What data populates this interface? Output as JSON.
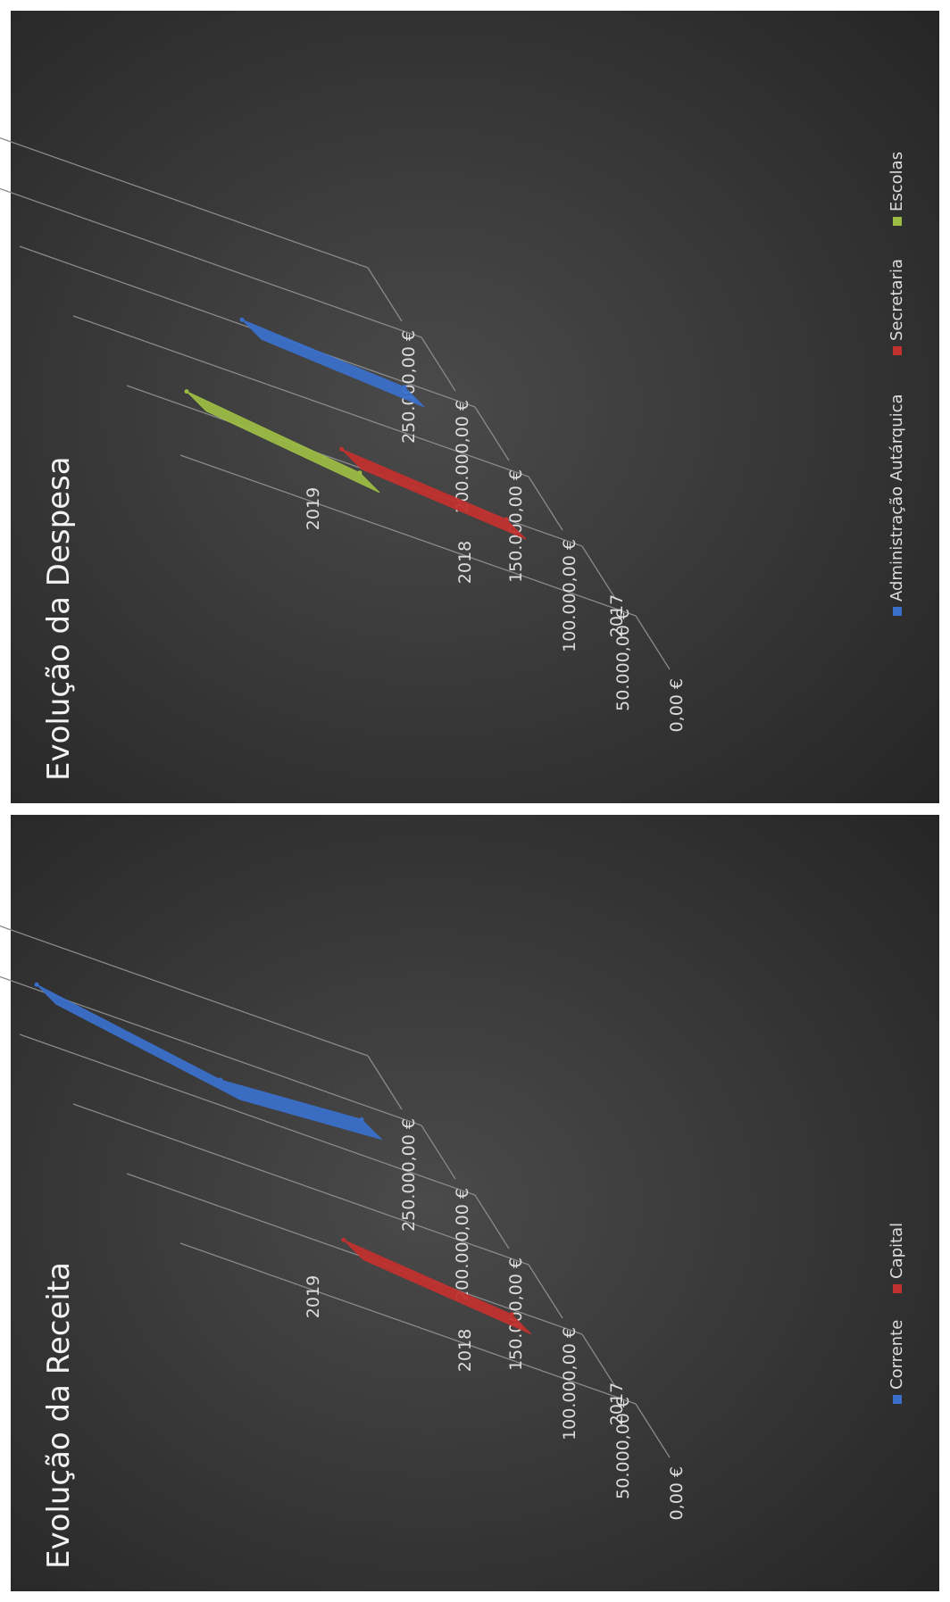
{
  "page": {
    "background": "#ffffff",
    "panel_color": "#2e2e2e"
  },
  "chart_data": [
    {
      "type": "line",
      "title": "Evolução da Receita",
      "categories": [
        "2017",
        "2018",
        "2019"
      ],
      "yticks": [
        "0,00 €",
        "50.000,00 €",
        "100.000,00 €",
        "150.000,00 €",
        "200.000,00 €",
        "250.000,00 €"
      ],
      "ylim": [
        0,
        250000
      ],
      "grid": true,
      "legend_position": "bottom",
      "series": [
        {
          "name": "Corrente",
          "color": "#3a6fc9",
          "values": [
            185000,
            175000,
            205000
          ]
        },
        {
          "name": "Capital",
          "color": "#c0312f",
          "values": [
            45000,
            60000,
            null
          ]
        }
      ]
    },
    {
      "type": "line",
      "title": "Evolução da Despesa",
      "categories": [
        "2017",
        "2018",
        "2019"
      ],
      "yticks": [
        "0,00 €",
        "50.000,00 €",
        "100.000,00 €",
        "150.000,00 €",
        "200.000,00 €",
        "250.000,00 €"
      ],
      "ylim": [
        0,
        250000
      ],
      "grid": true,
      "legend_position": "bottom",
      "series": [
        {
          "name": "Administração Autárquica",
          "color": "#3a6fc9",
          "values": [
            145000,
            155000,
            null
          ]
        },
        {
          "name": "Secretaria",
          "color": "#c0312f",
          "values": [
            50000,
            62000,
            null
          ]
        },
        {
          "name": "Escolas",
          "color": "#9bbb44",
          "values": [
            null,
            45000,
            65000
          ]
        }
      ]
    }
  ]
}
